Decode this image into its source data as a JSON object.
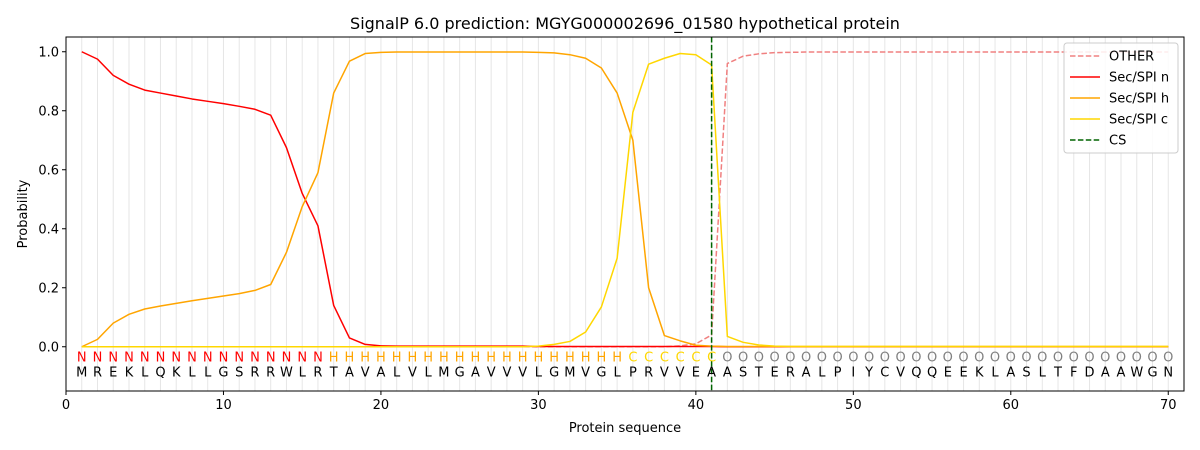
{
  "chart_data": {
    "type": "line",
    "title": "SignalP 6.0 prediction: MGYG000002696_01580 hypothetical protein",
    "xlabel": "Protein sequence",
    "ylabel": "Probability",
    "xlim": [
      0,
      71
    ],
    "ylim": [
      -0.15,
      1.05
    ],
    "x_ticks": [
      0,
      10,
      20,
      30,
      40,
      50,
      60,
      70
    ],
    "y_ticks": [
      0.0,
      0.2,
      0.4,
      0.6,
      0.8,
      1.0
    ],
    "y_tick_labels": [
      "0.0",
      "0.2",
      "0.4",
      "0.6",
      "0.8",
      "1.0"
    ],
    "grid": "vertical lines at each residue",
    "legend_position": "top-right",
    "sequence": [
      "M",
      "R",
      "E",
      "K",
      "L",
      "Q",
      "K",
      "L",
      "L",
      "G",
      "S",
      "R",
      "R",
      "W",
      "L",
      "R",
      "T",
      "A",
      "V",
      "A",
      "L",
      "V",
      "L",
      "M",
      "G",
      "A",
      "V",
      "V",
      "V",
      "L",
      "G",
      "M",
      "V",
      "G",
      "L",
      "P",
      "R",
      "V",
      "V",
      "E",
      "A",
      "A",
      "S",
      "T",
      "E",
      "R",
      "A",
      "L",
      "P",
      "I",
      "Y",
      "C",
      "V",
      "Q",
      "Q",
      "E",
      "E",
      "K",
      "L",
      "A",
      "S",
      "L",
      "T",
      "F",
      "D",
      "A",
      "A",
      "W",
      "G",
      "N"
    ],
    "region_labels": [
      "N",
      "N",
      "N",
      "N",
      "N",
      "N",
      "N",
      "N",
      "N",
      "N",
      "N",
      "N",
      "N",
      "N",
      "N",
      "N",
      "H",
      "H",
      "H",
      "H",
      "H",
      "H",
      "H",
      "H",
      "H",
      "H",
      "H",
      "H",
      "H",
      "H",
      "H",
      "H",
      "H",
      "H",
      "H",
      "C",
      "C",
      "C",
      "C",
      "C",
      "C",
      "O",
      "O",
      "O",
      "O",
      "O",
      "O",
      "O",
      "O",
      "O",
      "O",
      "O",
      "O",
      "O",
      "O",
      "O",
      "O",
      "O",
      "O",
      "O",
      "O",
      "O",
      "O",
      "O",
      "O",
      "O",
      "O",
      "O",
      "O",
      "O"
    ],
    "region_colors": {
      "N": "#ff0000",
      "H": "#ffa500",
      "C": "#ffd700",
      "O": "#808080"
    },
    "cleavage_site": 41,
    "series": [
      {
        "name": "OTHER",
        "color": "#f08080",
        "dash": "dashed",
        "values": [
          0,
          0,
          0,
          0,
          0,
          0,
          0,
          0,
          0,
          0,
          0,
          0,
          0,
          0,
          0,
          0,
          0,
          0,
          0,
          0,
          0,
          0,
          0,
          0,
          0,
          0,
          0,
          0,
          0,
          0,
          0,
          0,
          0,
          0,
          0,
          0,
          0,
          0,
          0.003,
          0.01,
          0.04,
          0.96,
          0.985,
          0.993,
          0.997,
          0.998,
          0.999,
          0.999,
          0.999,
          0.999,
          0.999,
          0.999,
          0.999,
          0.999,
          0.999,
          0.999,
          0.999,
          0.999,
          0.999,
          0.999,
          0.999,
          0.999,
          0.999,
          0.999,
          0.999,
          0.999,
          0.999,
          0.999,
          0.999,
          0.999
        ]
      },
      {
        "name": "Sec/SPI n",
        "color": "#ff0000",
        "dash": "solid",
        "values": [
          1.0,
          0.975,
          0.92,
          0.89,
          0.87,
          0.86,
          0.85,
          0.84,
          0.832,
          0.824,
          0.815,
          0.805,
          0.785,
          0.675,
          0.52,
          0.41,
          0.14,
          0.03,
          0.008,
          0.003,
          0.002,
          0.002,
          0.002,
          0.002,
          0.002,
          0.002,
          0.002,
          0.002,
          0.002,
          0.001,
          0.001,
          0.001,
          0.001,
          0.001,
          0.001,
          0.001,
          0.001,
          0.001,
          0.001,
          0.001,
          0.001,
          0,
          0,
          0,
          0,
          0,
          0,
          0,
          0,
          0,
          0,
          0,
          0,
          0,
          0,
          0,
          0,
          0,
          0,
          0,
          0,
          0,
          0,
          0,
          0,
          0,
          0,
          0,
          0,
          0
        ]
      },
      {
        "name": "Sec/SPI h",
        "color": "#ffa500",
        "dash": "solid",
        "values": [
          0,
          0.025,
          0.08,
          0.11,
          0.128,
          0.138,
          0.147,
          0.156,
          0.164,
          0.172,
          0.18,
          0.191,
          0.211,
          0.32,
          0.475,
          0.59,
          0.86,
          0.968,
          0.994,
          0.998,
          0.999,
          0.999,
          0.999,
          0.999,
          0.999,
          0.999,
          0.999,
          0.999,
          0.999,
          0.998,
          0.996,
          0.99,
          0.978,
          0.945,
          0.86,
          0.7,
          0.2,
          0.038,
          0.02,
          0.005,
          0.002,
          0.001,
          0.001,
          0.001,
          0.001,
          0.001,
          0.001,
          0.001,
          0.001,
          0.001,
          0.001,
          0.001,
          0.001,
          0.001,
          0.001,
          0.001,
          0.001,
          0.001,
          0.001,
          0.001,
          0.001,
          0.001,
          0.001,
          0.001,
          0.001,
          0.001,
          0.001,
          0.001,
          0.001,
          0.001
        ]
      },
      {
        "name": "Sec/SPI c",
        "color": "#ffd700",
        "dash": "solid",
        "values": [
          0,
          0,
          0,
          0,
          0,
          0,
          0,
          0,
          0,
          0,
          0,
          0,
          0,
          0,
          0,
          0,
          0,
          0,
          0,
          0,
          0,
          0,
          0,
          0,
          0,
          0,
          0,
          0,
          0,
          0.002,
          0.008,
          0.018,
          0.05,
          0.135,
          0.3,
          0.795,
          0.958,
          0.978,
          0.994,
          0.99,
          0.955,
          0.035,
          0.015,
          0.006,
          0.002,
          0.001,
          0.001,
          0.001,
          0.001,
          0.001,
          0.001,
          0.001,
          0.001,
          0.001,
          0.001,
          0.001,
          0.001,
          0.001,
          0.001,
          0.001,
          0.001,
          0.001,
          0.001,
          0.001,
          0.001,
          0.001,
          0.001,
          0.001,
          0.001,
          0.001
        ]
      }
    ],
    "legend": [
      {
        "label": "OTHER",
        "color": "#f08080",
        "dash": "dashed"
      },
      {
        "label": "Sec/SPI n",
        "color": "#ff0000",
        "dash": "solid"
      },
      {
        "label": "Sec/SPI h",
        "color": "#ffa500",
        "dash": "solid"
      },
      {
        "label": "Sec/SPI c",
        "color": "#ffd700",
        "dash": "solid"
      },
      {
        "label": "CS",
        "color": "#006400",
        "dash": "dashed"
      }
    ]
  }
}
